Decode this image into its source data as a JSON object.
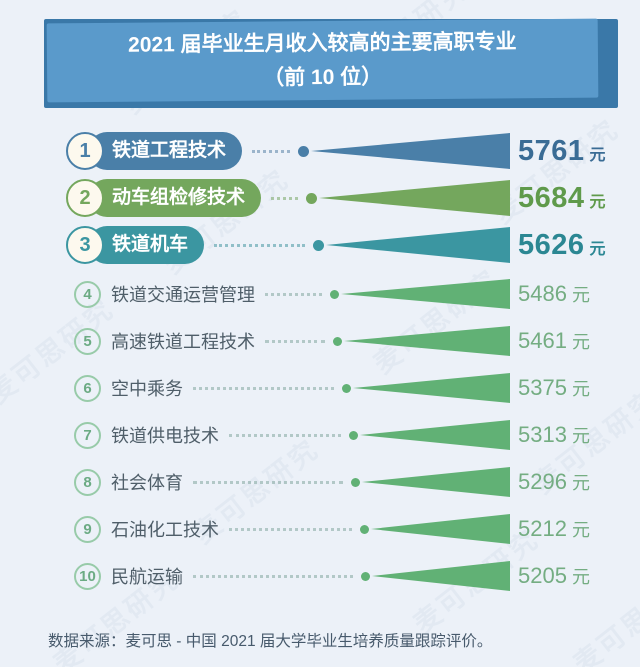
{
  "title": {
    "line1": "2021 届毕业生月收入较高的主要高职专业",
    "line2": "（前 10 位）"
  },
  "rows": [
    {
      "rank": "1",
      "label": "铁道工程技术",
      "value": 5761,
      "value_display": "5761",
      "unit": "元",
      "theme": "blue"
    },
    {
      "rank": "2",
      "label": "动车组检修技术",
      "value": 5684,
      "value_display": "5684",
      "unit": "元",
      "theme": "green"
    },
    {
      "rank": "3",
      "label": "铁道机车",
      "value": 5626,
      "value_display": "5626",
      "unit": "元",
      "theme": "teal"
    },
    {
      "rank": "4",
      "label": "铁道交通运营管理",
      "value": 5486,
      "value_display": "5486",
      "unit": "元",
      "theme": "plain"
    },
    {
      "rank": "5",
      "label": "高速铁道工程技术",
      "value": 5461,
      "value_display": "5461",
      "unit": "元",
      "theme": "plain"
    },
    {
      "rank": "6",
      "label": "空中乘务",
      "value": 5375,
      "value_display": "5375",
      "unit": "元",
      "theme": "plain"
    },
    {
      "rank": "7",
      "label": "铁道供电技术",
      "value": 5313,
      "value_display": "5313",
      "unit": "元",
      "theme": "plain"
    },
    {
      "rank": "8",
      "label": "社会体育",
      "value": 5296,
      "value_display": "5296",
      "unit": "元",
      "theme": "plain"
    },
    {
      "rank": "9",
      "label": "石油化工技术",
      "value": 5212,
      "value_display": "5212",
      "unit": "元",
      "theme": "plain"
    },
    {
      "rank": "10",
      "label": "民航运输",
      "value": 5205,
      "value_display": "5205",
      "unit": "元",
      "theme": "plain"
    }
  ],
  "footer": {
    "text": "数据来源：麦可思 - 中国 2021 届大学毕业生培养质量跟踪评价。"
  },
  "watermark": {
    "text": "麦可思研究"
  },
  "colors": {
    "background": "#ecf1f8",
    "banner_front": "#5a9acb",
    "banner_back": "#3a78a8",
    "banner_text": "#ffffff",
    "label_text": "#4f5e69",
    "footer_text": "#475a6c",
    "badge_fill": "#fdf9ee"
  },
  "themes": {
    "blue": {
      "main": "#4a7fa8",
      "value_text": "#3a6c95",
      "leader": "rgba(90,130,165,0.55)",
      "badge_num": "#4a7fa8",
      "badge_border": "#4a7fa8"
    },
    "green": {
      "main": "#74a75d",
      "value_text": "#5f9a4b",
      "leader": "rgba(120,165,100,0.55)",
      "badge_num": "#74a75d",
      "badge_border": "#74a75d"
    },
    "teal": {
      "main": "#3b96a1",
      "value_text": "#2b8793",
      "leader": "rgba(70,150,160,0.55)",
      "badge_num": "#3b96a1",
      "badge_border": "#3b96a1"
    },
    "plain": {
      "main": "#61b175",
      "value_text": "#74ad82",
      "leader": "rgba(120,160,150,0.5)",
      "badge_num": "#6cab84",
      "badge_border": "#98cba9"
    }
  },
  "chart_data": {
    "type": "bar",
    "title": "2021 届毕业生月收入较高的主要高职专业（前 10 位）",
    "categories": [
      "铁道工程技术",
      "动车组检修技术",
      "铁道机车",
      "铁道交通运营管理",
      "高速铁道工程技术",
      "空中乘务",
      "铁道供电技术",
      "社会体育",
      "石油化工技术",
      "民航运输"
    ],
    "values": [
      5761,
      5684,
      5626,
      5486,
      5461,
      5375,
      5313,
      5296,
      5212,
      5205
    ],
    "unit": "元",
    "orientation": "horizontal",
    "value_range": [
      5205,
      5761
    ],
    "source": "数据来源：麦可思 - 中国 2021 届大学毕业生培养质量跟踪评价。"
  }
}
